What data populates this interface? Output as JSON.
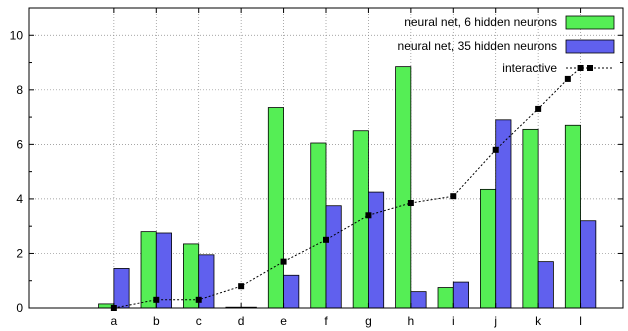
{
  "chart_data": {
    "type": "bar",
    "categories": [
      "a",
      "b",
      "c",
      "d",
      "e",
      "f",
      "g",
      "h",
      "i",
      "j",
      "k",
      "l"
    ],
    "x_positions": [
      1,
      2,
      3,
      4,
      5,
      6,
      7,
      8,
      9,
      10,
      11,
      12
    ],
    "xlim": [
      -1,
      13
    ],
    "ylim": [
      0,
      11
    ],
    "yticks": [
      "0",
      "2",
      "4",
      "6",
      "8",
      "10"
    ],
    "ytick_values": [
      0,
      2,
      4,
      6,
      8,
      10
    ],
    "grid": true,
    "legend_position": "top-right",
    "series": [
      {
        "name": "neural net, 6 hidden neurons",
        "type": "bar",
        "color": "#55ee55",
        "values": [
          0.15,
          2.8,
          2.35,
          0.02,
          7.35,
          6.05,
          6.5,
          8.85,
          0.75,
          4.35,
          6.55,
          6.7
        ]
      },
      {
        "name": "neural net, 35 hidden neurons",
        "type": "bar",
        "color": "#6060ee",
        "values": [
          1.45,
          2.75,
          1.95,
          0.02,
          1.2,
          3.75,
          4.25,
          0.6,
          0.95,
          6.9,
          1.7,
          3.2
        ]
      },
      {
        "name": "interactive",
        "type": "line",
        "style": "dotted",
        "marker": "square",
        "color": "#000000",
        "x": [
          1,
          2,
          3,
          4,
          5,
          6,
          7,
          8,
          9,
          10,
          11,
          11.7,
          12
        ],
        "values": [
          0.0,
          0.3,
          0.3,
          0.8,
          1.7,
          2.5,
          3.4,
          3.85,
          4.1,
          5.8,
          7.3,
          8.4,
          8.8
        ]
      }
    ]
  }
}
